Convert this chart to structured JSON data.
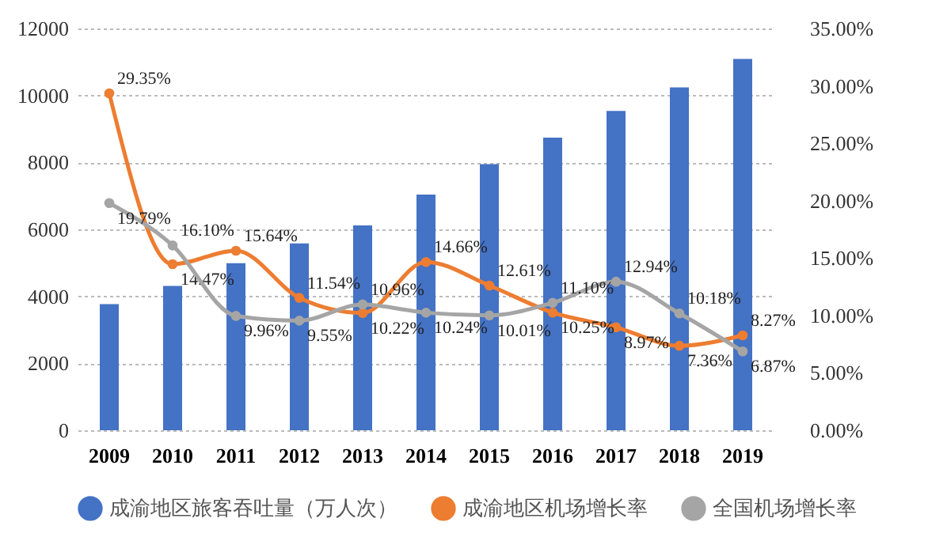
{
  "chart_data": {
    "type": "bar",
    "categories": [
      "2009",
      "2010",
      "2011",
      "2012",
      "2013",
      "2014",
      "2015",
      "2016",
      "2017",
      "2018",
      "2019"
    ],
    "series": [
      {
        "name": "成渝地区旅客吞吐量（万人次）",
        "color": "#4472c4",
        "values": [
          3770,
          4310,
          4990,
          5580,
          6120,
          7040,
          7950,
          8740,
          9540,
          10240,
          11090
        ]
      },
      {
        "name": "成渝地区机场增长率",
        "type": "line",
        "axis": "y2",
        "color": "#ed7d31",
        "values": [
          29.35,
          14.47,
          15.64,
          11.54,
          10.22,
          14.66,
          12.61,
          10.25,
          8.97,
          7.36,
          8.27
        ],
        "value_labels": [
          "29.35%",
          "14.47%",
          "15.64%",
          "11.54%",
          "10.22%",
          "14.66%",
          "12.61%",
          "10.25%",
          "8.97%",
          "7.36%",
          "8.27%"
        ]
      },
      {
        "name": "全国机场增长率",
        "type": "line",
        "axis": "y2",
        "color": "#a5a5a5",
        "values": [
          19.79,
          16.1,
          9.96,
          9.55,
          10.96,
          10.24,
          10.01,
          11.1,
          12.94,
          10.18,
          6.87
        ],
        "value_labels": [
          "19.79%",
          "16.10%",
          "9.96%",
          "9.55%",
          "10.96%",
          "10.24%",
          "10.01%",
          "11.10%",
          "12.94%",
          "10.18%",
          "6.87%"
        ]
      }
    ],
    "ylim": [
      0,
      12000
    ],
    "yticks": [
      0,
      2000,
      4000,
      6000,
      8000,
      10000,
      12000
    ],
    "y2lim": [
      0,
      35
    ],
    "y2ticks": [
      {
        "value": 0,
        "label": "0.00%"
      },
      {
        "value": 5,
        "label": "5.00%"
      },
      {
        "value": 10,
        "label": "10.00%"
      },
      {
        "value": 15,
        "label": "15.00%"
      },
      {
        "value": 20,
        "label": "20.00%"
      },
      {
        "value": 25,
        "label": "25.00%"
      },
      {
        "value": 30,
        "label": "30.00%"
      },
      {
        "value": 35,
        "label": "35.00%"
      }
    ],
    "grid": "y",
    "legend": "bottom",
    "marker": "circle"
  }
}
